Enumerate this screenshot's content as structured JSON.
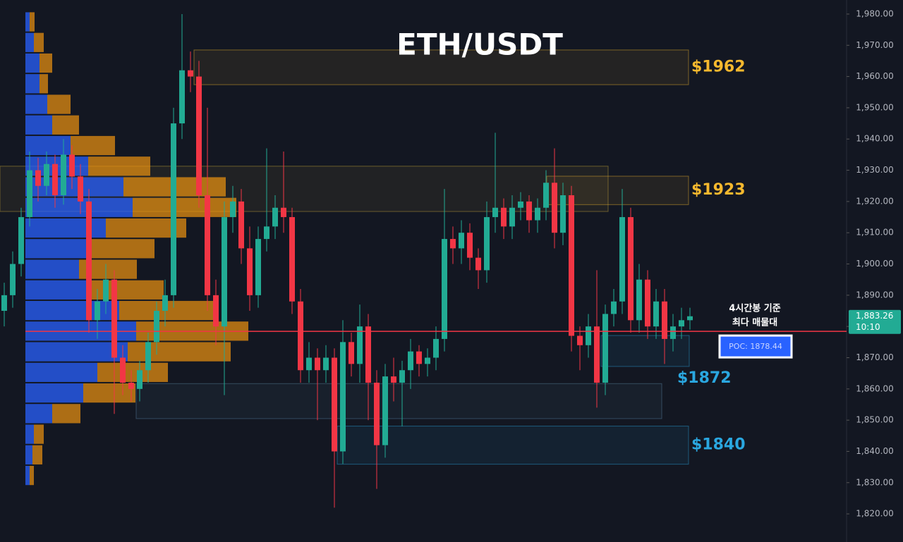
{
  "chart_data": {
    "type": "candlestick",
    "title": "ETH/USDT",
    "open": [
      1885,
      1890,
      1900,
      1915,
      1930,
      1925,
      1932,
      1922,
      1935,
      1928,
      1920,
      1882,
      1888,
      1895,
      1870,
      1862,
      1860,
      1866,
      1875,
      1885,
      1890,
      1945,
      1962,
      1960,
      1922,
      1890,
      1880,
      1915,
      1920,
      1905,
      1890,
      1908,
      1912,
      1918,
      1915,
      1888,
      1866,
      1870,
      1866,
      1870,
      1840,
      1875,
      1868,
      1880,
      1862,
      1842,
      1864,
      1862,
      1866,
      1872,
      1868,
      1870,
      1876,
      1908,
      1905,
      1910,
      1902,
      1898,
      1915,
      1918,
      1912,
      1918,
      1920,
      1914,
      1918,
      1926,
      1910,
      1922,
      1877,
      1874,
      1880,
      1862,
      1884,
      1888,
      1915,
      1882,
      1895,
      1880,
      1888,
      1876,
      1880,
      1882
    ],
    "high": [
      1894,
      1904,
      1918,
      1936,
      1934,
      1936,
      1935,
      1940,
      1938,
      1932,
      1924,
      1892,
      1900,
      1898,
      1874,
      1866,
      1869,
      1878,
      1888,
      1895,
      1950,
      1980,
      1968,
      1965,
      1950,
      1895,
      1920,
      1925,
      1924,
      1912,
      1912,
      1937,
      1922,
      1936,
      1918,
      1892,
      1875,
      1873,
      1874,
      1873,
      1882,
      1878,
      1887,
      1884,
      1866,
      1868,
      1870,
      1869,
      1876,
      1874,
      1873,
      1880,
      1924,
      1912,
      1914,
      1913,
      1905,
      1920,
      1942,
      1921,
      1922,
      1923,
      1922,
      1921,
      1930,
      1937,
      1926,
      1925,
      1880,
      1884,
      1898,
      1887,
      1892,
      1924,
      1918,
      1900,
      1898,
      1892,
      1892,
      1884,
      1886,
      1886
    ],
    "low": [
      1880,
      1886,
      1896,
      1912,
      1920,
      1922,
      1918,
      1919,
      1924,
      1916,
      1878,
      1876,
      1884,
      1852,
      1858,
      1856,
      1856,
      1862,
      1871,
      1880,
      1886,
      1940,
      1955,
      1918,
      1885,
      1874,
      1858,
      1910,
      1900,
      1885,
      1886,
      1904,
      1908,
      1910,
      1884,
      1862,
      1862,
      1850,
      1862,
      1822,
      1836,
      1864,
      1862,
      1850,
      1828,
      1838,
      1856,
      1848,
      1860,
      1864,
      1864,
      1866,
      1872,
      1900,
      1900,
      1898,
      1892,
      1894,
      1910,
      1908,
      1908,
      1914,
      1910,
      1910,
      1914,
      1905,
      1906,
      1872,
      1866,
      1870,
      1854,
      1858,
      1880,
      1884,
      1878,
      1878,
      1876,
      1876,
      1868,
      1872,
      1876,
      1879
    ],
    "close": [
      1890,
      1900,
      1915,
      1930,
      1925,
      1932,
      1922,
      1935,
      1928,
      1920,
      1882,
      1888,
      1895,
      1870,
      1862,
      1860,
      1866,
      1875,
      1885,
      1890,
      1945,
      1962,
      1960,
      1922,
      1890,
      1880,
      1915,
      1920,
      1905,
      1890,
      1908,
      1912,
      1918,
      1915,
      1888,
      1866,
      1870,
      1866,
      1870,
      1840,
      1875,
      1868,
      1880,
      1862,
      1842,
      1864,
      1862,
      1866,
      1872,
      1868,
      1870,
      1876,
      1908,
      1905,
      1910,
      1902,
      1898,
      1915,
      1918,
      1912,
      1918,
      1920,
      1914,
      1918,
      1926,
      1910,
      1922,
      1877,
      1874,
      1880,
      1862,
      1884,
      1888,
      1915,
      1882,
      1895,
      1880,
      1888,
      1876,
      1880,
      1882,
      1883.26
    ],
    "up_color": "#22ab94",
    "down_color": "#f23645",
    "ylim": [
      1811,
      1984.5
    ],
    "yticks": [
      {
        "value": 1820,
        "label": "1,820.00"
      },
      {
        "value": 1830,
        "label": "1,830.00"
      },
      {
        "value": 1840,
        "label": "1,840.00"
      },
      {
        "value": 1850,
        "label": "1,850.00"
      },
      {
        "value": 1860,
        "label": "1,860.00"
      },
      {
        "value": 1870,
        "label": "1,870.00"
      },
      {
        "value": 1880,
        "label": "1,880.00"
      },
      {
        "value": 1890,
        "label": "1,890.00"
      },
      {
        "value": 1900,
        "label": "1,900.00"
      },
      {
        "value": 1910,
        "label": "1,910.00"
      },
      {
        "value": 1920,
        "label": "1,920.00"
      },
      {
        "value": 1930,
        "label": "1,930.00"
      },
      {
        "value": 1940,
        "label": "1,940.00"
      },
      {
        "value": 1950,
        "label": "1,950.00"
      },
      {
        "value": 1960,
        "label": "1,960.00"
      },
      {
        "value": 1970,
        "label": "1,970.00"
      },
      {
        "value": 1980,
        "label": "1,980.00"
      }
    ],
    "grid": false,
    "volume_profile": {
      "bins": [
        1829.0,
        1835.6,
        1842.2,
        1848.8,
        1855.4,
        1862.0,
        1868.6,
        1875.2,
        1881.8,
        1888.4,
        1895.0,
        1901.6,
        1908.2,
        1914.8,
        1921.4,
        1928.0,
        1934.6,
        1941.2,
        1947.8,
        1954.4,
        1961.0,
        1967.6,
        1974.2,
        1980.8
      ],
      "buy": [
        6,
        10,
        12,
        38,
        82,
        102,
        145,
        157,
        133,
        94,
        76,
        90,
        114,
        152,
        139,
        89,
        64,
        38,
        31,
        20,
        20,
        12,
        6
      ],
      "sell": [
        6,
        14,
        14,
        40,
        74,
        100,
        146,
        159,
        138,
        102,
        82,
        93,
        114,
        147,
        145,
        88,
        63,
        38,
        33,
        12,
        18,
        14,
        7
      ],
      "buy_color": "#2962ff",
      "sell_color": "#f0940f"
    },
    "zones": [
      {
        "low": 1957.4,
        "high": 1968.5,
        "label": "$1962",
        "color": "#f5b82e"
      },
      {
        "low": 1916.8,
        "high": 1931.3,
        "color": "#c9a83a"
      },
      {
        "low": 1919.0,
        "high": 1928.1,
        "label": "$1923",
        "color": "#f5b82e"
      },
      {
        "low": 1867.2,
        "high": 1877.1,
        "label": "$1872",
        "color": "#2aa7e0"
      },
      {
        "low": 1850.5,
        "high": 1861.7,
        "color": "#5b86a6"
      },
      {
        "low": 1835.9,
        "high": 1848.1,
        "label": "$1840",
        "color": "#2aa7e0"
      }
    ],
    "poc": {
      "value": 1878.44,
      "label": "POC: 1878.44"
    },
    "annotation": [
      "4시간봉 기준",
      "최다 매물대"
    ],
    "last_price": {
      "value": 1883.26,
      "label": "1,883.26"
    },
    "countdown": "10:10"
  }
}
